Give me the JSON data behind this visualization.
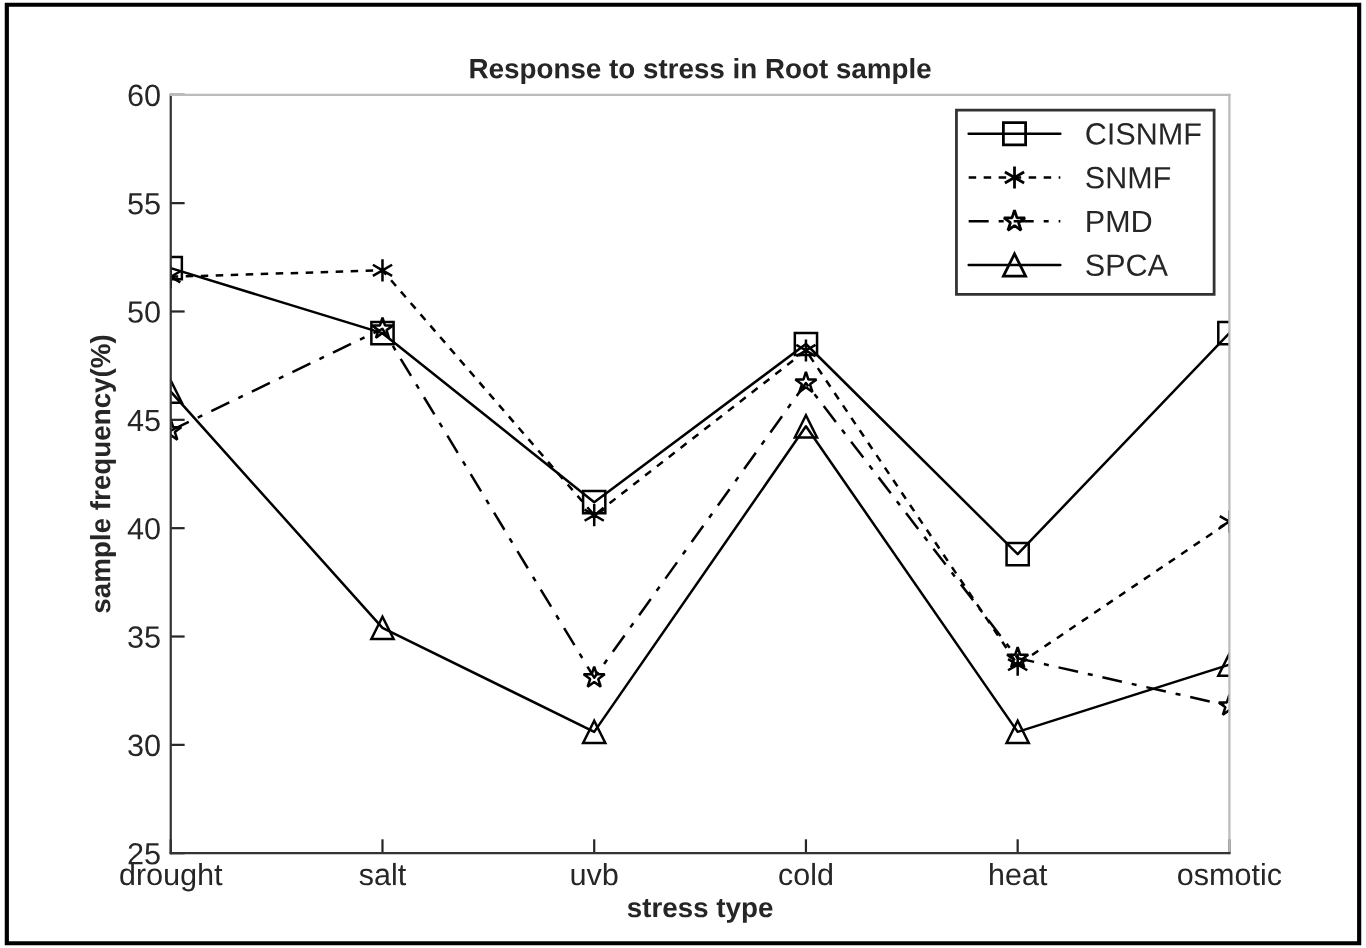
{
  "chart_data": {
    "type": "line",
    "title": "Response to stress in Root sample",
    "xlabel": "stress type",
    "ylabel": "sample frequency(%)",
    "categories": [
      "drought",
      "salt",
      "uvb",
      "cold",
      "heat",
      "osmotic"
    ],
    "series": [
      {
        "name": "CISNMF",
        "color": "#000000",
        "marker": "square",
        "line_style": "solid",
        "values": [
          52,
          49,
          41.2,
          48.5,
          38.8,
          49
        ]
      },
      {
        "name": "SNMF",
        "color": "#000000",
        "marker": "cross",
        "line_style": "dotted",
        "values": [
          51.6,
          51.9,
          40.6,
          48.2,
          33.7,
          40.3
        ]
      },
      {
        "name": "PMD",
        "color": "#000000",
        "marker": "star",
        "line_style": "dashed",
        "values": [
          44.5,
          49.2,
          33.1,
          46.7,
          34,
          31.8
        ]
      },
      {
        "name": "SPCA",
        "color": "#000000",
        "marker": "triangle",
        "line_style": "solid",
        "values": [
          46.3,
          35.4,
          30.6,
          44.7,
          30.6,
          33.7
        ]
      }
    ],
    "ylim": [
      25,
      60
    ],
    "yticks": [
      25,
      30,
      35,
      40,
      45,
      50,
      55,
      60
    ],
    "grid": false,
    "legend": "top right"
  }
}
